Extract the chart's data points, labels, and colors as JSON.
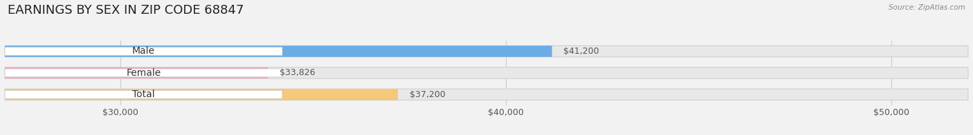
{
  "title": "EARNINGS BY SEX IN ZIP CODE 68847",
  "source": "Source: ZipAtlas.com",
  "categories": [
    "Male",
    "Female",
    "Total"
  ],
  "values": [
    41200,
    33826,
    37200
  ],
  "bar_colors": [
    "#6aace6",
    "#f4a8c0",
    "#f5c87a"
  ],
  "value_labels": [
    "$41,200",
    "$33,826",
    "$37,200"
  ],
  "xlim": [
    27000,
    52000
  ],
  "xmin": 27000,
  "xmax": 52000,
  "xticks": [
    30000,
    40000,
    50000
  ],
  "xtick_labels": [
    "$30,000",
    "$40,000",
    "$50,000"
  ],
  "bar_height": 0.52,
  "bg_color": "#f2f2f2",
  "bar_bg_color": "#e8e8e8",
  "title_fontsize": 13,
  "tick_fontsize": 9,
  "label_fontsize": 10,
  "value_fontsize": 9
}
